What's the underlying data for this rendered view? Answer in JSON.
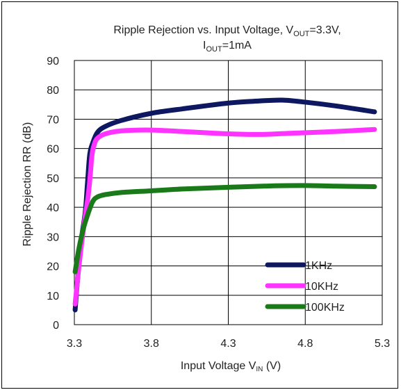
{
  "chart_data": {
    "type": "line",
    "title_main": "Ripple Rejection vs. Input Voltage, V",
    "title_sub1": "OUT",
    "title_tail": "=3.3V,",
    "title2_main": "I",
    "title2_sub": "OUT",
    "title2_tail": "=1mA",
    "ylabel": "Ripple Rejection RR (dB)",
    "xlabel_main": "Input Voltage V",
    "xlabel_sub": "IN",
    "xlabel_tail": " (V)",
    "xlim": [
      3.3,
      5.3
    ],
    "ylim": [
      0,
      90
    ],
    "x_ticks": [
      "3.3",
      "3.8",
      "4.3",
      "4.8",
      "5.3"
    ],
    "y_ticks": [
      "0",
      "10",
      "20",
      "30",
      "40",
      "50",
      "60",
      "70",
      "80",
      "90"
    ],
    "grid": true,
    "legend_position": "bottom-right",
    "series": [
      {
        "name": "1KHz",
        "color": "#0d1860",
        "x": [
          3.305,
          3.32,
          3.34,
          3.37,
          3.385,
          3.4,
          3.42,
          3.45,
          3.5,
          3.6,
          3.8,
          4.0,
          4.3,
          4.5,
          4.65,
          4.8,
          5.0,
          5.25
        ],
        "y": [
          5,
          15,
          27,
          38,
          48,
          58,
          62,
          65.5,
          67.5,
          69.5,
          72,
          73.5,
          75.5,
          76.2,
          76.5,
          75.8,
          74.5,
          72.5
        ]
      },
      {
        "name": "10KHz",
        "color": "#ff33ff",
        "x": [
          3.305,
          3.33,
          3.36,
          3.39,
          3.405,
          3.415,
          3.43,
          3.45,
          3.5,
          3.6,
          3.8,
          4.0,
          4.3,
          4.5,
          4.7,
          5.0,
          5.25
        ],
        "y": [
          7,
          20,
          33,
          44,
          52,
          58,
          61.5,
          63.5,
          65,
          66,
          66.3,
          65.8,
          65,
          64.8,
          65.2,
          65.8,
          66.5
        ]
      },
      {
        "name": "100KHz",
        "color": "#1a7a1a",
        "x": [
          3.305,
          3.33,
          3.36,
          3.39,
          3.42,
          3.45,
          3.5,
          3.6,
          3.8,
          4.0,
          4.3,
          4.6,
          4.8,
          5.0,
          5.25
        ],
        "y": [
          18,
          26,
          33,
          38,
          42,
          43.5,
          44.3,
          45,
          45.6,
          46.2,
          46.8,
          47.3,
          47.4,
          47.2,
          47
        ]
      }
    ]
  }
}
